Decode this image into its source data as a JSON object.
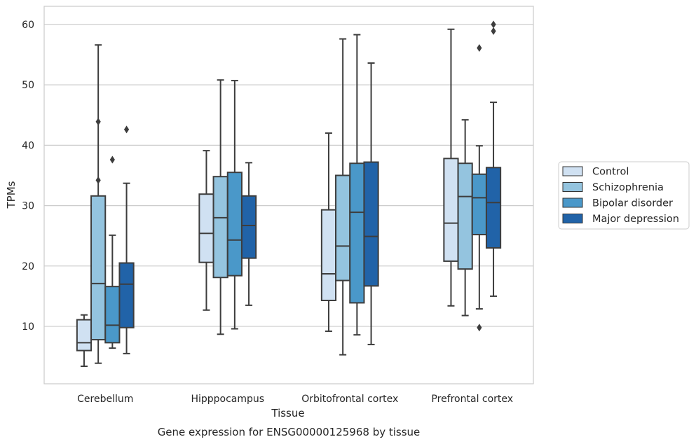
{
  "chart_data": {
    "type": "box",
    "caption": "Gene expression for ENSG00000125968 by tissue",
    "xlabel": "Tissue",
    "ylabel": "TPMs",
    "ylim": [
      0.5,
      63
    ],
    "yticks": [
      10,
      20,
      30,
      40,
      50,
      60
    ],
    "grid": "horizontal",
    "legend_position": "right",
    "categories": [
      "Cerebellum",
      "Hipppocampus",
      "Orbitofrontal cortex",
      "Prefrontal cortex"
    ],
    "series": [
      {
        "name": "Control",
        "color": "#d0e1f2",
        "boxes": [
          {
            "whisker_low": 3.4,
            "q1": 6.0,
            "median": 7.3,
            "q3": 11.1,
            "whisker_high": 11.9,
            "outliers": []
          },
          {
            "whisker_low": 12.7,
            "q1": 20.6,
            "median": 25.4,
            "q3": 31.9,
            "whisker_high": 39.1,
            "outliers": []
          },
          {
            "whisker_low": 9.2,
            "q1": 14.3,
            "median": 18.7,
            "q3": 29.3,
            "whisker_high": 42.0,
            "outliers": []
          },
          {
            "whisker_low": 13.4,
            "q1": 20.8,
            "median": 27.1,
            "q3": 37.8,
            "whisker_high": 59.2,
            "outliers": []
          }
        ]
      },
      {
        "name": "Schizophrenia",
        "color": "#94c4df",
        "boxes": [
          {
            "whisker_low": 3.9,
            "q1": 7.8,
            "median": 17.1,
            "q3": 31.6,
            "whisker_high": 56.6,
            "outliers": [
              34.2,
              43.9
            ]
          },
          {
            "whisker_low": 8.7,
            "q1": 18.1,
            "median": 28.0,
            "q3": 34.8,
            "whisker_high": 50.8,
            "outliers": []
          },
          {
            "whisker_low": 5.3,
            "q1": 17.6,
            "median": 23.3,
            "q3": 35.0,
            "whisker_high": 57.6,
            "outliers": []
          },
          {
            "whisker_low": 11.8,
            "q1": 19.5,
            "median": 31.5,
            "q3": 37.0,
            "whisker_high": 44.2,
            "outliers": []
          }
        ]
      },
      {
        "name": "Bipolar disorder",
        "color": "#4a98c9",
        "boxes": [
          {
            "whisker_low": 6.4,
            "q1": 7.3,
            "median": 10.2,
            "q3": 16.6,
            "whisker_high": 25.1,
            "outliers": [
              37.6
            ]
          },
          {
            "whisker_low": 9.6,
            "q1": 18.4,
            "median": 24.3,
            "q3": 35.5,
            "whisker_high": 50.7,
            "outliers": []
          },
          {
            "whisker_low": 8.6,
            "q1": 13.9,
            "median": 28.9,
            "q3": 37.0,
            "whisker_high": 58.3,
            "outliers": []
          },
          {
            "whisker_low": 12.9,
            "q1": 25.2,
            "median": 31.3,
            "q3": 35.2,
            "whisker_high": 39.9,
            "outliers": [
              9.8,
              56.1
            ]
          }
        ]
      },
      {
        "name": "Major depression",
        "color": "#2163a8",
        "boxes": [
          {
            "whisker_low": 5.5,
            "q1": 9.8,
            "median": 17.0,
            "q3": 20.5,
            "whisker_high": 33.7,
            "outliers": [
              42.6
            ]
          },
          {
            "whisker_low": 13.5,
            "q1": 21.3,
            "median": 26.7,
            "q3": 31.6,
            "whisker_high": 37.1,
            "outliers": []
          },
          {
            "whisker_low": 7.0,
            "q1": 16.7,
            "median": 24.9,
            "q3": 37.2,
            "whisker_high": 53.6,
            "outliers": []
          },
          {
            "whisker_low": 15.0,
            "q1": 23.0,
            "median": 30.5,
            "q3": 36.3,
            "whisker_high": 47.1,
            "outliers": [
              58.9,
              60.0
            ]
          }
        ]
      }
    ]
  }
}
